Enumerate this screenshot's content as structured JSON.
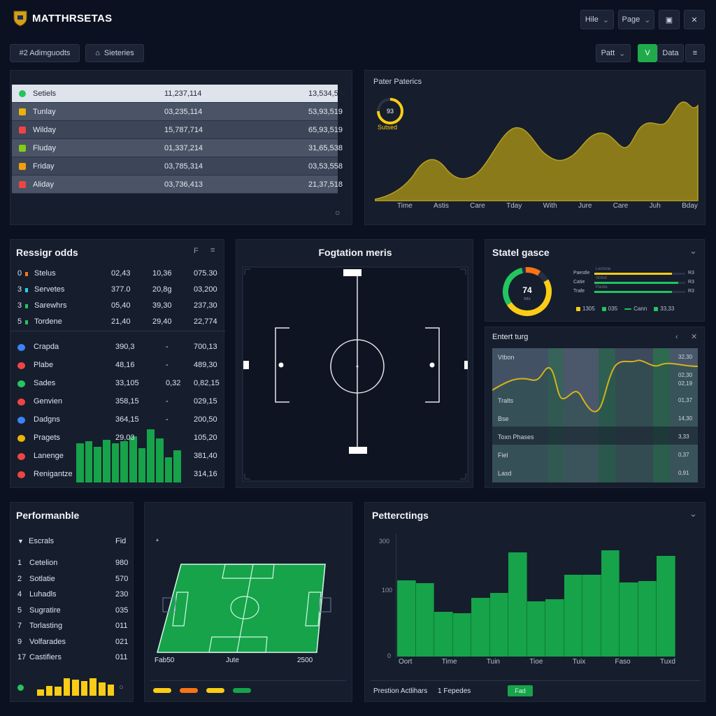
{
  "header": {
    "app_title": "MATTHRSETAS",
    "menu_hile": "Hile",
    "menu_page": "Page",
    "tag_adjustments": "#2 Adimguodts",
    "tag_sieteries": "Sieteries",
    "btn_patt": "Patt",
    "btn_v": "V",
    "btn_data": "Data"
  },
  "stats_table": {
    "rows": [
      {
        "name": "Setiels",
        "v1": "11,237,114",
        "v2": "13,534,5%",
        "color": "#22c55e"
      },
      {
        "name": "Tunlay",
        "v1": "03,235,114",
        "v2": "53,93,519",
        "color": "#eab308"
      },
      {
        "name": "Wilday",
        "v1": "15,787,714",
        "v2": "65,93,519",
        "color": "#ef4444"
      },
      {
        "name": "Fluday",
        "v1": "01,337,214",
        "v2": "31,65,538",
        "color": "#84cc16"
      },
      {
        "name": "Friday",
        "v1": "03,785,314",
        "v2": "03,53,558",
        "color": "#f59e0b"
      },
      {
        "name": "Aliday",
        "v1": "03,736,413",
        "v2": "21,37,518",
        "color": "#ef4444"
      }
    ]
  },
  "pater_panel": {
    "title": "Pater Paterics",
    "gauge_value": "93",
    "gauge_label": "Sutsed",
    "xlabels": [
      "Time",
      "Astis",
      "Care",
      "Tday",
      "With",
      "Jure",
      "Care",
      "Juh",
      "Bday"
    ]
  },
  "resig_panel": {
    "title": "Ressigr odds",
    "top_rows": [
      {
        "n": "0",
        "name": "Stelus",
        "a": "02,43",
        "b": "10,36",
        "c": "075.30",
        "color": "#f97316"
      },
      {
        "n": "3",
        "name": "Servetes",
        "a": "377.0",
        "b": "20,8g",
        "c": "03,200",
        "color": "#22d3ee"
      },
      {
        "name": "Sarewhrs",
        "n": "3",
        "a": "05,40",
        "b": "39,30",
        "c": "237,30",
        "color": "#22c55e"
      },
      {
        "n": "5",
        "name": "Tordene",
        "a": "21,40",
        "b": "29,40",
        "c": "22,774",
        "color": "#22c55e"
      }
    ],
    "bottom_rows": [
      {
        "name": "Crapda",
        "a": "390,3",
        "b": "-",
        "c": "700,13",
        "color": "#3b82f6"
      },
      {
        "name": "Plabe",
        "a": "48,16",
        "b": "-",
        "c": "489,30",
        "color": "#ef4444"
      },
      {
        "name": "Sades",
        "a": "33,105",
        "b": "0,32",
        "c": "0,82,15",
        "color": "#22c55e"
      },
      {
        "name": "Genvien",
        "a": "358,15",
        "b": "-",
        "c": "029,15",
        "color": "#ef4444"
      },
      {
        "name": "Dadgns",
        "a": "364,15",
        "b": "-",
        "c": "200,50",
        "color": "#3b82f6"
      },
      {
        "name": "Pragets",
        "a": "29,03",
        "b": "",
        "c": "105,20",
        "color": "#eab308"
      },
      {
        "name": "Lanenge",
        "a": "",
        "b": "",
        "c": "381,40",
        "color": "#ef4444"
      },
      {
        "name": "Renigantze",
        "a": "",
        "b": "",
        "c": "314,16",
        "color": "#ef4444"
      }
    ],
    "bars": [
      0.55,
      0.58,
      0.5,
      0.6,
      0.55,
      0.58,
      0.65,
      0.48,
      0.75,
      0.62,
      0.35,
      0.45
    ]
  },
  "formation_panel": {
    "title": "Fogtation meris"
  },
  "state_panel": {
    "title": "Statel gasce",
    "gauge_value": "74",
    "gauge_sub": "tvts",
    "bar_labels": [
      "Paestle",
      "Catie",
      "Trafe"
    ],
    "bar_values": [
      "R3",
      "R3",
      "R3"
    ],
    "mini_tags": [
      "Lectone",
      "Strlod",
      "Pastie"
    ],
    "legend": [
      "1305",
      "035",
      "Cann",
      "33,33"
    ]
  },
  "entert_panel": {
    "title": "Entert turg",
    "rows": [
      {
        "label": "Vtbon",
        "value": "32,30"
      },
      {
        "label": "",
        "value": "02,30"
      },
      {
        "label": "",
        "value": "02,19"
      },
      {
        "label": "Tralts",
        "value": "01,37"
      },
      {
        "label": "Bse",
        "value": "14,30"
      },
      {
        "label": "Toxn Phases",
        "value": "3,33"
      },
      {
        "label": "Fiel",
        "value": "0,37"
      },
      {
        "label": "Lasd",
        "value": "0,91"
      }
    ]
  },
  "perf_panel": {
    "title": "Performanble",
    "header_left": "Escrals",
    "header_right": "Fid",
    "rows": [
      {
        "n": "1",
        "name": "Cetelion",
        "v": "980"
      },
      {
        "n": "2",
        "name": "Sotlatie",
        "v": "570"
      },
      {
        "n": "4",
        "name": "Luhadls",
        "v": "230"
      },
      {
        "n": "5",
        "name": "Sugratire",
        "v": "035"
      },
      {
        "n": "7",
        "name": "Torlasting",
        "v": "011"
      },
      {
        "n": "9",
        "name": "Volfarades",
        "v": "021"
      },
      {
        "n": "17",
        "name": "Castifiers",
        "v": "011"
      }
    ],
    "bars": [
      0.35,
      0.55,
      0.5,
      0.95,
      0.9,
      0.8,
      0.95,
      0.75,
      0.6
    ]
  },
  "pitch_panel": {
    "labels": [
      "Fab50",
      "Jute",
      "2500"
    ],
    "legend_colors": [
      "#facc15",
      "#f97316",
      "#facc15",
      "#16a34a"
    ]
  },
  "petter_panel": {
    "title": "Petterctings",
    "y_ticks": [
      "300",
      "100",
      "0"
    ],
    "x_labels": [
      "Oort",
      "Time",
      "Tuin",
      "Tioe",
      "Tuix",
      "Faso",
      "Tuxd"
    ],
    "bars": [
      0.72,
      0.69,
      0.42,
      0.41,
      0.55,
      0.6,
      0.98,
      0.52,
      0.54,
      0.77,
      0.77,
      1.0,
      0.7,
      0.71,
      0.95
    ],
    "footer_left": "Prestion Actlihars",
    "footer_mid": "1 Fepedes",
    "footer_btn": "Fad"
  },
  "colors": {
    "accent_green": "#22c55e",
    "bar_green": "#16a34a",
    "area_gold": "#8a7a1a",
    "yellow": "#facc15"
  }
}
